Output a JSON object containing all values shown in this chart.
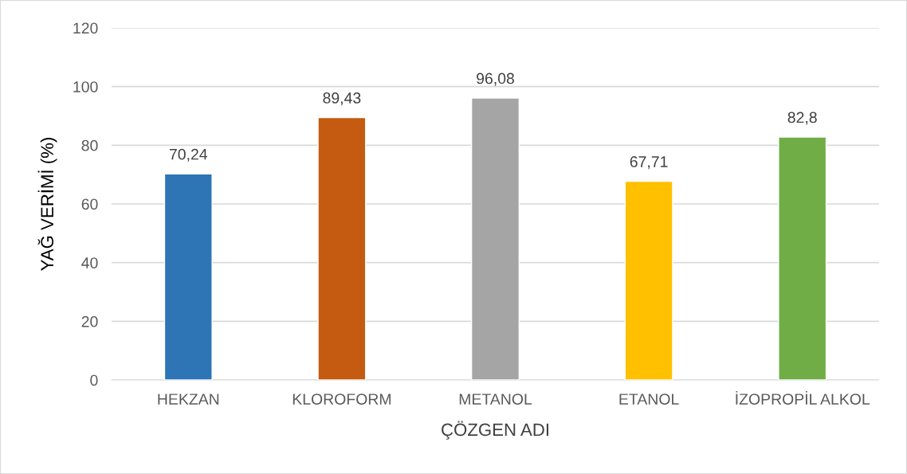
{
  "chart_data": {
    "type": "bar",
    "xlabel": "ÇÖZGEN ADI",
    "ylabel": "YAĞ VERİMİ (%)",
    "categories": [
      "HEKZAN",
      "KLOROFORM",
      "METANOL",
      "ETANOL",
      "İZOPROPİL ALKOL"
    ],
    "values": [
      70.24,
      89.43,
      96.08,
      67.71,
      82.8
    ],
    "value_labels": [
      "70,24",
      "89,43",
      "96,08",
      "67,71",
      "82,8"
    ],
    "colors": [
      "#2e75b6",
      "#c55a11",
      "#a5a5a5",
      "#ffc000",
      "#70ad47"
    ],
    "ylim": [
      0,
      120
    ],
    "yticks": [
      0,
      20,
      40,
      60,
      80,
      100,
      120
    ],
    "grid": "y"
  }
}
